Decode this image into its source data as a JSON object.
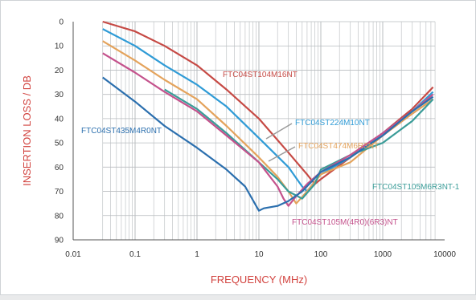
{
  "chart_data": {
    "type": "line",
    "xlabel": "FREQUENCY (MHz)",
    "ylabel": "INSERTION LOSS / DB",
    "x_scale": "log",
    "xlim": [
      0.01,
      10000
    ],
    "ylim": [
      0,
      90
    ],
    "y_inverted": true,
    "grid": true,
    "x_ticks": [
      "0.01",
      "0.1",
      "1",
      "10",
      "100",
      "1000",
      "10000"
    ],
    "y_ticks": [
      "0",
      "10",
      "20",
      "30",
      "40",
      "50",
      "60",
      "70",
      "80",
      "90"
    ],
    "colors": {
      "axis_label": "#d2433f",
      "grid": "#b8bcbf",
      "tick": "#333333",
      "background": "#ffffff"
    },
    "series": [
      {
        "name": "FTC04ST104M16NT",
        "color": "#c64a45",
        "points": [
          [
            0.03,
            0
          ],
          [
            0.1,
            4
          ],
          [
            0.3,
            10
          ],
          [
            1,
            18
          ],
          [
            3,
            28
          ],
          [
            10,
            40
          ],
          [
            30,
            54
          ],
          [
            60,
            63
          ],
          [
            80,
            67
          ],
          [
            100,
            65
          ],
          [
            300,
            56
          ],
          [
            1000,
            46
          ],
          [
            3000,
            36
          ],
          [
            6500,
            27
          ]
        ]
      },
      {
        "name": "FTC04ST224M10NT",
        "color": "#2f9bd6",
        "points": [
          [
            0.03,
            3
          ],
          [
            0.1,
            10
          ],
          [
            0.3,
            18
          ],
          [
            1,
            26
          ],
          [
            3,
            35
          ],
          [
            10,
            48
          ],
          [
            30,
            60
          ],
          [
            50,
            68
          ],
          [
            60,
            70
          ],
          [
            80,
            66
          ],
          [
            100,
            63
          ],
          [
            300,
            56
          ],
          [
            1000,
            46
          ],
          [
            3000,
            37
          ],
          [
            6500,
            29
          ]
        ]
      },
      {
        "name": "FTC04ST474M6R3NT",
        "color": "#e4a35c",
        "points": [
          [
            0.03,
            8
          ],
          [
            0.1,
            16
          ],
          [
            0.3,
            24
          ],
          [
            1,
            32
          ],
          [
            3,
            43
          ],
          [
            10,
            56
          ],
          [
            20,
            64
          ],
          [
            30,
            70
          ],
          [
            40,
            75
          ],
          [
            60,
            70
          ],
          [
            100,
            63
          ],
          [
            300,
            58
          ],
          [
            1000,
            47
          ],
          [
            3000,
            38
          ],
          [
            6500,
            32
          ]
        ]
      },
      {
        "name": "FTC04ST105M6R3NT-1",
        "color": "#3a9c98",
        "points": [
          [
            0.3,
            28
          ],
          [
            1,
            36
          ],
          [
            3,
            46
          ],
          [
            10,
            58
          ],
          [
            20,
            65
          ],
          [
            30,
            70
          ],
          [
            50,
            73
          ],
          [
            80,
            67
          ],
          [
            100,
            61
          ],
          [
            300,
            55
          ],
          [
            1000,
            50
          ],
          [
            3000,
            41
          ],
          [
            6500,
            32
          ]
        ]
      },
      {
        "name": "FTC04ST105M(4R0)(6R3)NT",
        "color": "#c4528c",
        "points": [
          [
            0.03,
            13
          ],
          [
            0.1,
            21
          ],
          [
            0.3,
            29
          ],
          [
            1,
            37
          ],
          [
            3,
            47
          ],
          [
            10,
            58
          ],
          [
            20,
            68
          ],
          [
            25,
            73
          ],
          [
            30,
            76
          ],
          [
            40,
            72
          ],
          [
            60,
            67
          ],
          [
            100,
            62
          ],
          [
            300,
            55
          ],
          [
            1000,
            46
          ],
          [
            3000,
            37
          ],
          [
            6500,
            30
          ]
        ]
      },
      {
        "name": "FTC04ST435M4R0NT",
        "color": "#2b6fae",
        "points": [
          [
            0.03,
            23
          ],
          [
            0.1,
            33
          ],
          [
            0.3,
            43
          ],
          [
            1,
            52
          ],
          [
            3,
            61
          ],
          [
            6,
            68
          ],
          [
            10,
            78
          ],
          [
            12,
            77
          ],
          [
            20,
            76
          ],
          [
            30,
            74
          ],
          [
            50,
            70
          ],
          [
            100,
            62
          ],
          [
            300,
            56
          ],
          [
            1000,
            47
          ],
          [
            3000,
            37
          ],
          [
            6500,
            31
          ]
        ]
      }
    ]
  }
}
